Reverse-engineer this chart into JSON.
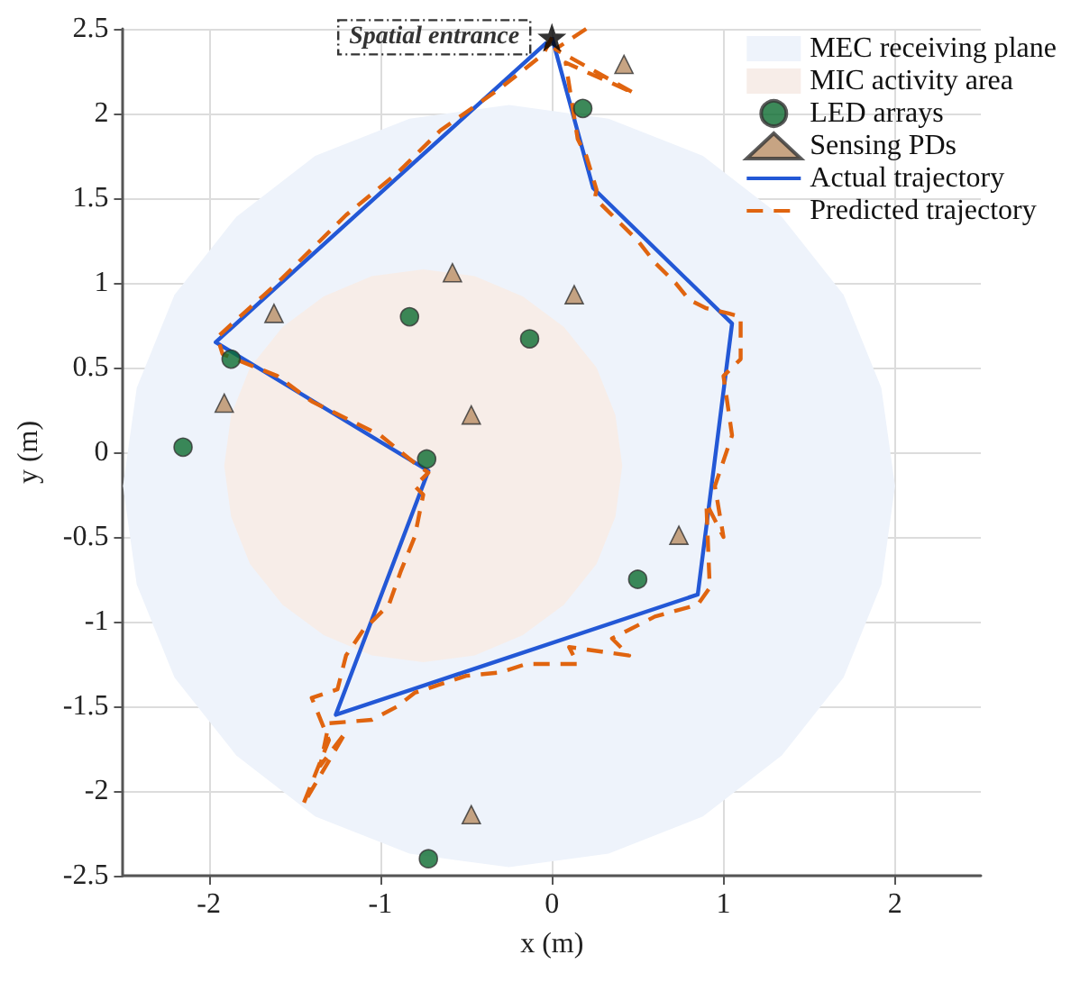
{
  "chart_data": {
    "type": "scatter",
    "xlabel": "x (m)",
    "ylabel": "y (m)",
    "xlim": [
      -2.5,
      2.5
    ],
    "xticks": [
      -2,
      -1,
      0,
      1,
      2
    ],
    "ylim": [
      -2.5,
      2.5
    ],
    "yticks": [
      -2.5,
      -2,
      -1.5,
      -1,
      -0.5,
      0,
      0.5,
      1,
      1.5,
      2,
      2.5
    ],
    "grid": true,
    "legend": "top right",
    "annotations": [
      {
        "text": "Spatial entrance",
        "x": 0,
        "y": 2.45
      }
    ],
    "series": [
      {
        "name": "MEC receiving plane",
        "type": "area",
        "color": "#eef3fb",
        "x": [
          2.0,
          1.92,
          1.7,
          1.34,
          0.88,
          0.33,
          -0.25,
          -0.83,
          -1.38,
          -1.84,
          -2.2,
          -2.42,
          -2.5,
          -2.42,
          -2.2,
          -1.84,
          -1.38,
          -0.83,
          -0.25,
          0.33,
          0.88,
          1.34,
          1.7,
          1.92
        ],
        "values": [
          -0.2,
          0.38,
          0.93,
          1.39,
          1.75,
          1.97,
          2.05,
          1.97,
          1.75,
          1.39,
          0.93,
          0.38,
          -0.2,
          -0.78,
          -1.33,
          -1.79,
          -2.15,
          -2.37,
          -2.45,
          -2.37,
          -2.15,
          -1.79,
          -1.33,
          -0.78
        ]
      },
      {
        "name": "MIC activity area",
        "type": "area",
        "color": "#f7ede8",
        "x": [
          0.41,
          0.37,
          0.26,
          0.07,
          -0.17,
          -0.45,
          -0.75,
          -1.05,
          -1.33,
          -1.57,
          -1.76,
          -1.87,
          -1.91,
          -1.87,
          -1.76,
          -1.57,
          -1.33,
          -1.05,
          -0.75,
          -0.45,
          -0.17,
          0.07,
          0.26,
          0.37
        ],
        "values": [
          -0.08,
          0.22,
          0.5,
          0.74,
          0.92,
          1.04,
          1.08,
          1.04,
          0.92,
          0.74,
          0.5,
          0.22,
          -0.08,
          -0.38,
          -0.66,
          -0.9,
          -1.08,
          -1.2,
          -1.24,
          -1.2,
          -1.08,
          -0.9,
          -0.66,
          -0.38
        ]
      },
      {
        "name": "LED arrays",
        "marker": "circle",
        "color": "#0b6b2f",
        "x": [
          0.18,
          -0.83,
          -0.13,
          -1.87,
          -2.15,
          -0.73,
          0.5,
          -0.72
        ],
        "values": [
          2.03,
          0.8,
          0.67,
          0.55,
          0.03,
          -0.04,
          -0.75,
          -2.4
        ]
      },
      {
        "name": "Sensing PDs",
        "marker": "triangle",
        "color": "#b98d64",
        "x": [
          0.42,
          -0.58,
          0.13,
          -1.62,
          -1.91,
          -0.47,
          0.74,
          -0.47
        ],
        "values": [
          2.29,
          1.06,
          0.93,
          0.82,
          0.29,
          0.22,
          -0.49,
          -2.14
        ]
      },
      {
        "name": "Actual trajectory",
        "type": "line",
        "marker": "none",
        "line_style": "solid",
        "color": "#2358d6",
        "x": [
          0,
          0.24,
          1.05,
          0.85,
          -1.26,
          -0.72,
          -1.96,
          -0.03
        ],
        "values": [
          2.45,
          1.56,
          0.76,
          -0.84,
          -1.55,
          -0.11,
          0.65,
          2.42
        ]
      },
      {
        "name": "Predicted trajectory",
        "type": "line",
        "marker": "none",
        "line_style": "dashed",
        "color": "#e0640f",
        "x": [
          0.2,
          0.02,
          0.48,
          0.08,
          0.15,
          0.2,
          0.26,
          0.25,
          0.5,
          0.6,
          0.72,
          0.8,
          0.9,
          1.03,
          1.1,
          1.1,
          1.0,
          1.05,
          0.95,
          1.0,
          0.9,
          0.92,
          0.85,
          0.6,
          0.35,
          0.45,
          0.1,
          0.15,
          -0.15,
          -0.3,
          -0.5,
          -0.8,
          -0.9,
          -1.05,
          -1.3,
          -1.35,
          -1.2,
          -1.45,
          -1.3,
          -1.4,
          -1.25,
          -1.2,
          -1.1,
          -0.95,
          -0.88,
          -0.8,
          -0.75,
          -0.8,
          -0.72,
          -0.78,
          -1.0,
          -1.2,
          -1.4,
          -1.6,
          -1.92,
          -1.95,
          -1.6,
          -1.2,
          -0.9,
          -0.65,
          -0.3,
          -0.05,
          0
        ],
        "values": [
          2.5,
          2.38,
          2.12,
          2.3,
          1.85,
          1.75,
          1.55,
          1.5,
          1.25,
          1.12,
          1.0,
          0.9,
          0.85,
          0.82,
          0.8,
          0.55,
          0.45,
          0.1,
          -0.2,
          -0.5,
          -0.3,
          -0.8,
          -0.9,
          -0.97,
          -1.1,
          -1.2,
          -1.15,
          -1.25,
          -1.25,
          -1.3,
          -1.32,
          -1.42,
          -1.5,
          -1.58,
          -1.6,
          -1.85,
          -1.65,
          -2.08,
          -1.7,
          -1.45,
          -1.4,
          -1.2,
          -1.05,
          -0.9,
          -0.7,
          -0.5,
          -0.25,
          -0.2,
          -0.12,
          -0.08,
          0.1,
          0.2,
          0.3,
          0.45,
          0.58,
          0.68,
          1.0,
          1.4,
          1.65,
          1.9,
          2.15,
          2.35,
          2.45
        ]
      },
      {
        "marker": "star",
        "color": "#000000",
        "x": [
          0
        ],
        "values": [
          2.45
        ]
      }
    ]
  }
}
